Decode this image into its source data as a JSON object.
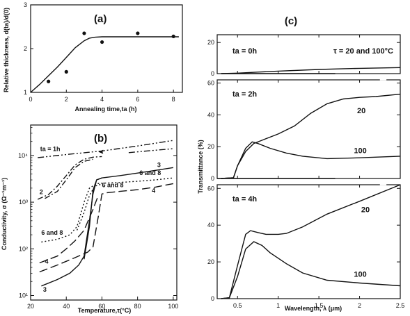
{
  "chart_data": [
    {
      "id": "a",
      "type": "line",
      "panel_label": "(a)",
      "xlabel": "Annealing time,ta (h)",
      "ylabel": "Relative thickness, d(ta)/d(0)",
      "xlim": [
        0,
        8.5
      ],
      "ylim": [
        1,
        3
      ],
      "xticks": [
        0,
        2,
        4,
        6,
        8
      ],
      "xtick_labels": [
        "0",
        "2",
        "4",
        "6",
        "8"
      ],
      "yticks": [
        1,
        2,
        3
      ],
      "ytick_labels": [
        "1",
        "2",
        "3"
      ],
      "points": [
        {
          "x": 1,
          "y": 1.25
        },
        {
          "x": 2,
          "y": 1.47
        },
        {
          "x": 3,
          "y": 2.35
        },
        {
          "x": 4,
          "y": 2.15
        },
        {
          "x": 6,
          "y": 2.35
        },
        {
          "x": 8,
          "y": 2.28
        }
      ],
      "fit_curve": {
        "x": [
          0,
          0.5,
          1,
          1.5,
          2,
          2.5,
          3,
          3.3,
          3.6,
          4,
          5,
          6,
          7,
          8.3
        ],
        "y": [
          1.0,
          1.18,
          1.38,
          1.58,
          1.8,
          2.02,
          2.18,
          2.24,
          2.26,
          2.27,
          2.27,
          2.27,
          2.27,
          2.27
        ]
      }
    },
    {
      "id": "b",
      "type": "line",
      "panel_label": "(b)",
      "xlabel": "Temperature,τ(°C)",
      "ylabel": "Conductivity, σ (Ω⁻¹m⁻¹)",
      "yscale": "log",
      "xlim": [
        20,
        102
      ],
      "ylim": [
        8,
        45000
      ],
      "xticks": [
        20,
        40,
        60,
        80,
        100
      ],
      "xtick_labels": [
        "20",
        "40",
        "60",
        "80",
        "100"
      ],
      "yticks": [
        10,
        100,
        1000,
        10000
      ],
      "ytick_labels": [
        "10¹",
        "10²",
        "10³",
        "10⁴"
      ],
      "series": [
        {
          "name": "ta = 1h",
          "dash": "9 3 2 3 2 3",
          "x": [
            24,
            40,
            60,
            80,
            100
          ],
          "y": [
            9000,
            10500,
            12500,
            16000,
            21000
          ]
        },
        {
          "name": "",
          "dash": "9 3 2 3 2 3",
          "x": [
            75,
            85,
            100
          ],
          "y": [
            11500,
            12500,
            14000
          ]
        },
        {
          "name": "2",
          "dash": "8 3 2 3",
          "x": [
            24,
            30,
            35,
            40,
            45,
            50,
            55,
            60
          ],
          "y": [
            1150,
            1450,
            2200,
            3700,
            6300,
            8300,
            9200,
            9500
          ]
        },
        {
          "name": "",
          "dash": "8 3 2 3",
          "x": [
            28,
            35,
            40,
            45,
            50,
            55
          ],
          "y": [
            1200,
            1700,
            3000,
            5500,
            7500,
            8300
          ]
        },
        {
          "name": "3",
          "dash": "",
          "x": [
            26,
            35,
            42,
            47,
            50,
            53,
            55,
            57,
            60,
            70,
            80,
            90,
            100
          ],
          "y": [
            16,
            22,
            30,
            45,
            70,
            400,
            1500,
            3000,
            3300,
            3700,
            4200,
            4800,
            5500
          ]
        },
        {
          "name": "",
          "dash": "",
          "x": [
            50,
            53,
            55,
            57,
            60
          ],
          "y": [
            60,
            300,
            1800,
            3000,
            3300
          ]
        },
        {
          "name": "4",
          "dash": "12 5",
          "x": [
            25,
            35,
            45,
            52,
            55,
            58,
            60,
            63,
            70,
            80,
            90,
            100
          ],
          "y": [
            32,
            45,
            65,
            85,
            110,
            500,
            1500,
            1600,
            1700,
            1850,
            2100,
            2500
          ]
        },
        {
          "name": "",
          "dash": "12 5",
          "x": [
            25,
            35,
            40,
            45,
            50,
            55,
            58
          ],
          "y": [
            50,
            70,
            100,
            150,
            250,
            700,
            1400
          ]
        },
        {
          "name": "6 and 8",
          "dash": "2 3",
          "x": [
            26,
            35,
            42,
            46,
            50,
            53,
            57,
            60,
            70,
            80,
            90,
            100
          ],
          "y": [
            140,
            160,
            200,
            300,
            1000,
            2000,
            2500,
            2550,
            2650,
            2800,
            3000,
            3300
          ]
        },
        {
          "name": "",
          "dash": "2 3",
          "x": [
            46,
            50,
            53,
            56,
            60
          ],
          "y": [
            250,
            600,
            1400,
            2200,
            2450
          ]
        }
      ],
      "annotations": [
        {
          "text": "3",
          "x": 91,
          "y": 5700
        },
        {
          "text": "6 and 8",
          "x": 81,
          "y": 3800
        },
        {
          "text": "6 and 8",
          "x": 60,
          "y": 2100
        },
        {
          "text": "4",
          "x": 88,
          "y": 1600
        },
        {
          "text": "2",
          "x": 25,
          "y": 1500
        },
        {
          "text": "6 and 8",
          "x": 26,
          "y": 200
        },
        {
          "text": "4",
          "x": 28,
          "y": 48
        },
        {
          "text": "3",
          "x": 27,
          "y": 12
        }
      ]
    },
    {
      "id": "c",
      "type": "line",
      "panel_label": "(c)",
      "xlabel": "Wavelength, λ (μm)",
      "ylabel": "Transmittance (%)",
      "xlim": [
        0.25,
        2.5
      ],
      "xticks": [
        0.5,
        1.0,
        1.5,
        2.0,
        2.5
      ],
      "xtick_labels": [
        "0.5",
        "1",
        "1.5",
        "2",
        "2.5"
      ],
      "subplots": [
        {
          "label": "ta = 0h",
          "note": "τ = 20 and 100°C",
          "ylim": [
            0,
            25
          ],
          "yticks": [
            0,
            20
          ],
          "ytick_labels": [
            "0",
            "20"
          ],
          "series": [
            {
              "name": "",
              "x": [
                0.3,
                0.5,
                0.75,
                1.0,
                1.5,
                2.0,
                2.5
              ],
              "y": [
                0,
                0.3,
                1.0,
                1.6,
                2.7,
                3.4,
                3.9
              ]
            },
            {
              "name": "",
              "x": [
                0.3,
                1.7
              ],
              "y": [
                0,
                0
              ]
            }
          ]
        },
        {
          "label": "ta = 2h",
          "ylim": [
            0,
            62
          ],
          "yticks": [
            0,
            20,
            40,
            60
          ],
          "ytick_labels": [
            "0",
            "20",
            "40",
            "60"
          ],
          "series": [
            {
              "name": "20",
              "x": [
                0.3,
                0.45,
                0.5,
                0.6,
                0.7,
                0.8,
                1.0,
                1.2,
                1.4,
                1.6,
                1.8,
                2.0,
                2.2,
                2.5
              ],
              "y": [
                0,
                0.5,
                8,
                17,
                22,
                24,
                28,
                33,
                41,
                47,
                50,
                51,
                51.5,
                53
              ]
            },
            {
              "name": "100",
              "x": [
                0.3,
                0.45,
                0.5,
                0.6,
                0.68,
                0.75,
                0.9,
                1.1,
                1.3,
                1.6,
                2.0,
                2.5
              ],
              "y": [
                0,
                0.5,
                8,
                19,
                23,
                22,
                19,
                16,
                14,
                12.5,
                13,
                14
              ]
            },
            {
              "name": "",
              "x": [
                0.25,
                1.7
              ],
              "y": [
                0,
                0
              ]
            }
          ],
          "annotations": [
            {
              "text": "20",
              "x": 1.97,
              "y": 41
            },
            {
              "text": "100",
              "x": 1.93,
              "y": 16
            }
          ]
        },
        {
          "label": "ta = 4h",
          "ylim": [
            0,
            62
          ],
          "yticks": [
            0,
            20,
            40,
            60
          ],
          "ytick_labels": [
            "0",
            "20",
            "40",
            "60"
          ],
          "series": [
            {
              "name": "20",
              "x": [
                0.3,
                0.4,
                0.5,
                0.6,
                0.66,
                0.75,
                0.85,
                1.0,
                1.1,
                1.3,
                1.6,
                2.0,
                2.5
              ],
              "y": [
                0,
                0.5,
                18,
                35,
                37,
                36,
                35,
                35,
                35.5,
                39,
                46,
                53,
                62
              ]
            },
            {
              "name": "100",
              "x": [
                0.3,
                0.4,
                0.5,
                0.6,
                0.7,
                0.8,
                0.9,
                1.1,
                1.3,
                1.6,
                2.0,
                2.5
              ],
              "y": [
                0,
                0.5,
                12,
                27,
                31,
                29,
                25,
                19,
                14,
                10,
                8.5,
                7
              ]
            }
          ],
          "annotations": [
            {
              "text": "20",
              "x": 2.02,
              "y": 47
            },
            {
              "text": "100",
              "x": 1.93,
              "y": 12
            }
          ]
        }
      ]
    }
  ]
}
